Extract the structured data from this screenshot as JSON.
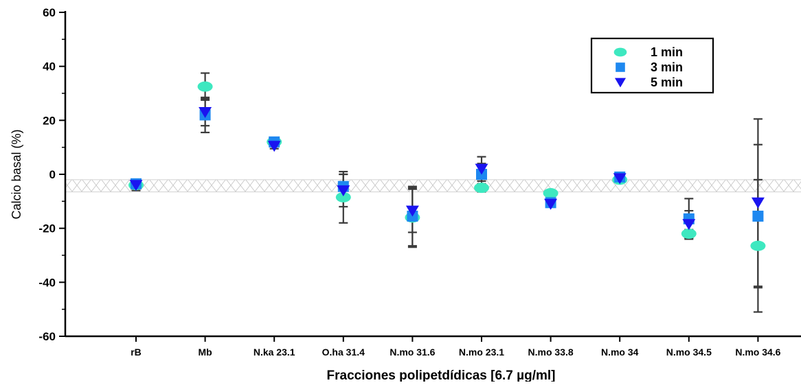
{
  "chart_data": {
    "type": "scatter",
    "xlabel": "Fracciones polipetdídicas [6.7 µg/ml]",
    "ylabel": "Calcio basal (%)",
    "ylim": [
      -60,
      60
    ],
    "yticks": [
      -60,
      -40,
      -20,
      0,
      20,
      40,
      60
    ],
    "categories": [
      "rB",
      "Mb",
      "N.ka 23.1",
      "O.ha 31.4",
      "N.mo 31.6",
      "N.mo 23.1",
      "N.mo 33.8",
      "N.mo 34",
      "N.mo 34.5",
      "N.mo 34.6"
    ],
    "reference_band": [
      -6.5,
      -2
    ],
    "legend_position": "top-right",
    "series": [
      {
        "name": "1 min",
        "marker": "circle",
        "color": "#3ee8c0",
        "values": [
          -4,
          32.5,
          12,
          -8.5,
          -16,
          -5,
          -7,
          -2,
          -22,
          -26.5
        ],
        "error": [
          2,
          5,
          1.5,
          9.5,
          11,
          1.5,
          0.8,
          0.8,
          1.5,
          24.5
        ]
      },
      {
        "name": "3 min",
        "marker": "square",
        "color": "#1e88f0",
        "values": [
          -3.5,
          22,
          12,
          -4.5,
          -15.5,
          0,
          -10.5,
          -1,
          -16.5,
          -15.5
        ],
        "error": [
          1.5,
          6.5,
          1,
          4.5,
          11,
          4,
          1,
          0.5,
          7.5,
          26.5
        ]
      },
      {
        "name": "5 min",
        "marker": "triangle-down",
        "color": "#1a14f0",
        "values": [
          -4,
          23,
          10.5,
          -6,
          -13.5,
          2,
          -11,
          -1.5,
          -18.5,
          -10.5
        ],
        "error": [
          1,
          5,
          1,
          6,
          8,
          4.5,
          0.8,
          0.5,
          5,
          31
        ]
      }
    ]
  }
}
